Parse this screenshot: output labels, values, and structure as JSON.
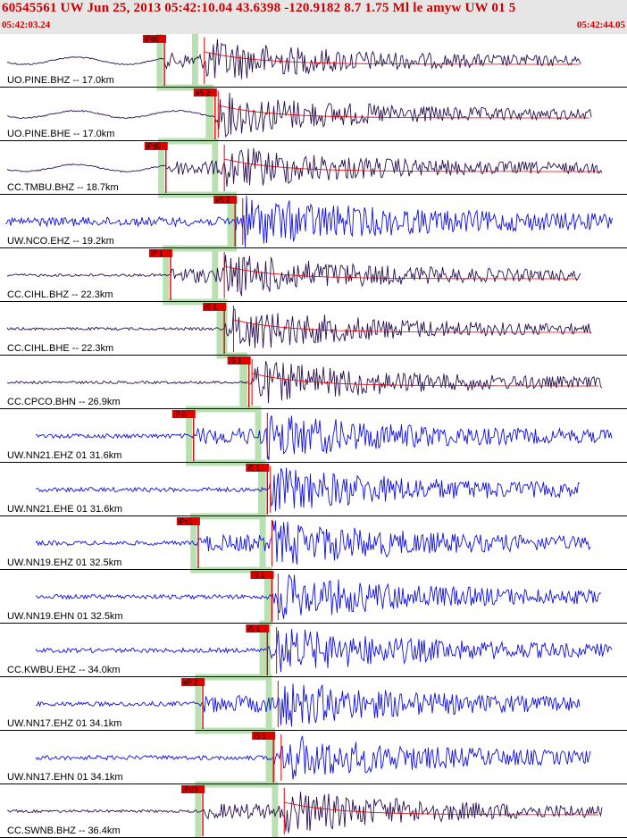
{
  "header": {
    "title": "60545561 UW Jun 25, 2013 05:42:10.04    43.6398 -120.9182  8.7 1.75 Ml le amyw UW 01    5",
    "start_time": "05:42:03.24",
    "end_time": "05:42:44.05"
  },
  "colors": {
    "header_bg": "#e6e6e6",
    "header_text": "#cc0000",
    "trace_dark": "#2a1050",
    "trace_blue": "#1010e0",
    "pick_red": "#e00000",
    "moveout_green": "#b8e0b0"
  },
  "chart_data": {
    "type": "line",
    "title": "",
    "x_start": "05:42:03.24",
    "x_end": "05:42:44.05",
    "x_range_s": [
      0,
      40.81
    ],
    "stations": [
      {
        "label": "UO.PINE.BHZ -- 17.0km",
        "color": "dark",
        "pick": "iPd0",
        "pick_time_s": 10.7,
        "secondary_time_s": 13.3
      },
      {
        "label": "UO.PINE.BHE -- 17.0km",
        "color": "dark",
        "pick": "eS 2",
        "pick_time_s": 14.0,
        "secondary_time_s": 14.2
      },
      {
        "label": "CC.TMBU.BHZ -- 18.7km",
        "color": "dark",
        "pick": "iPd0",
        "pick_time_s": 10.8,
        "secondary_time_s": 14.6
      },
      {
        "label": "UW.NCO.EHZ -- 19.2km",
        "color": "blue",
        "pick": "eS 2",
        "pick_time_s": 15.3,
        "secondary_time_s": 15.8
      },
      {
        "label": "CC.CIHL.BHZ -- 22.3km",
        "color": "dark",
        "pick": "iP 1",
        "pick_time_s": 11.1,
        "secondary_time_s": 14.6
      },
      {
        "label": "CC.CIHL.BHE -- 22.3km",
        "color": "dark",
        "pick": "iS 1",
        "pick_time_s": 14.6,
        "secondary_time_s": 15.2
      },
      {
        "label": "CC.CPCO.BHN -- 26.9km",
        "color": "dark",
        "pick": "iS 1",
        "pick_time_s": 16.2,
        "secondary_time_s": 16.4
      },
      {
        "label": "UW.NN21.EHZ 01 31.6km",
        "color": "blue",
        "pick": "iP 0",
        "pick_time_s": 12.6,
        "secondary_time_s": 17.4
      },
      {
        "label": "UW.NN21.EHE 01 31.6km",
        "color": "blue",
        "pick": "iS 1",
        "pick_time_s": 17.4,
        "secondary_time_s": 17.6
      },
      {
        "label": "UW.NN19.EHZ 01 32.5km",
        "color": "blue",
        "pick": "iPc1",
        "pick_time_s": 12.9,
        "secondary_time_s": 17.7
      },
      {
        "label": "UW.NN19.EHN 01 32.5km",
        "color": "blue",
        "pick": "iS 1",
        "pick_time_s": 17.7,
        "secondary_time_s": 18.1
      },
      {
        "label": "CC.KWBU.EHZ -- 34.0km",
        "color": "blue",
        "pick": "iS 1",
        "pick_time_s": 17.4,
        "secondary_time_s": 18.0
      },
      {
        "label": "UW.NN17.EHZ 01 34.1km",
        "color": "blue",
        "pick": "eP 2",
        "pick_time_s": 13.2,
        "secondary_time_s": 18.1
      },
      {
        "label": "UW.NN17.EHN 01 34.1km",
        "color": "blue",
        "pick": "iS 1",
        "pick_time_s": 17.8,
        "secondary_time_s": 18.3
      },
      {
        "label": "CC.SWNB.BHZ -- 36.4km",
        "color": "dark",
        "pick": "iPd0",
        "pick_time_s": 13.2,
        "secondary_time_s": 18.5
      }
    ]
  }
}
